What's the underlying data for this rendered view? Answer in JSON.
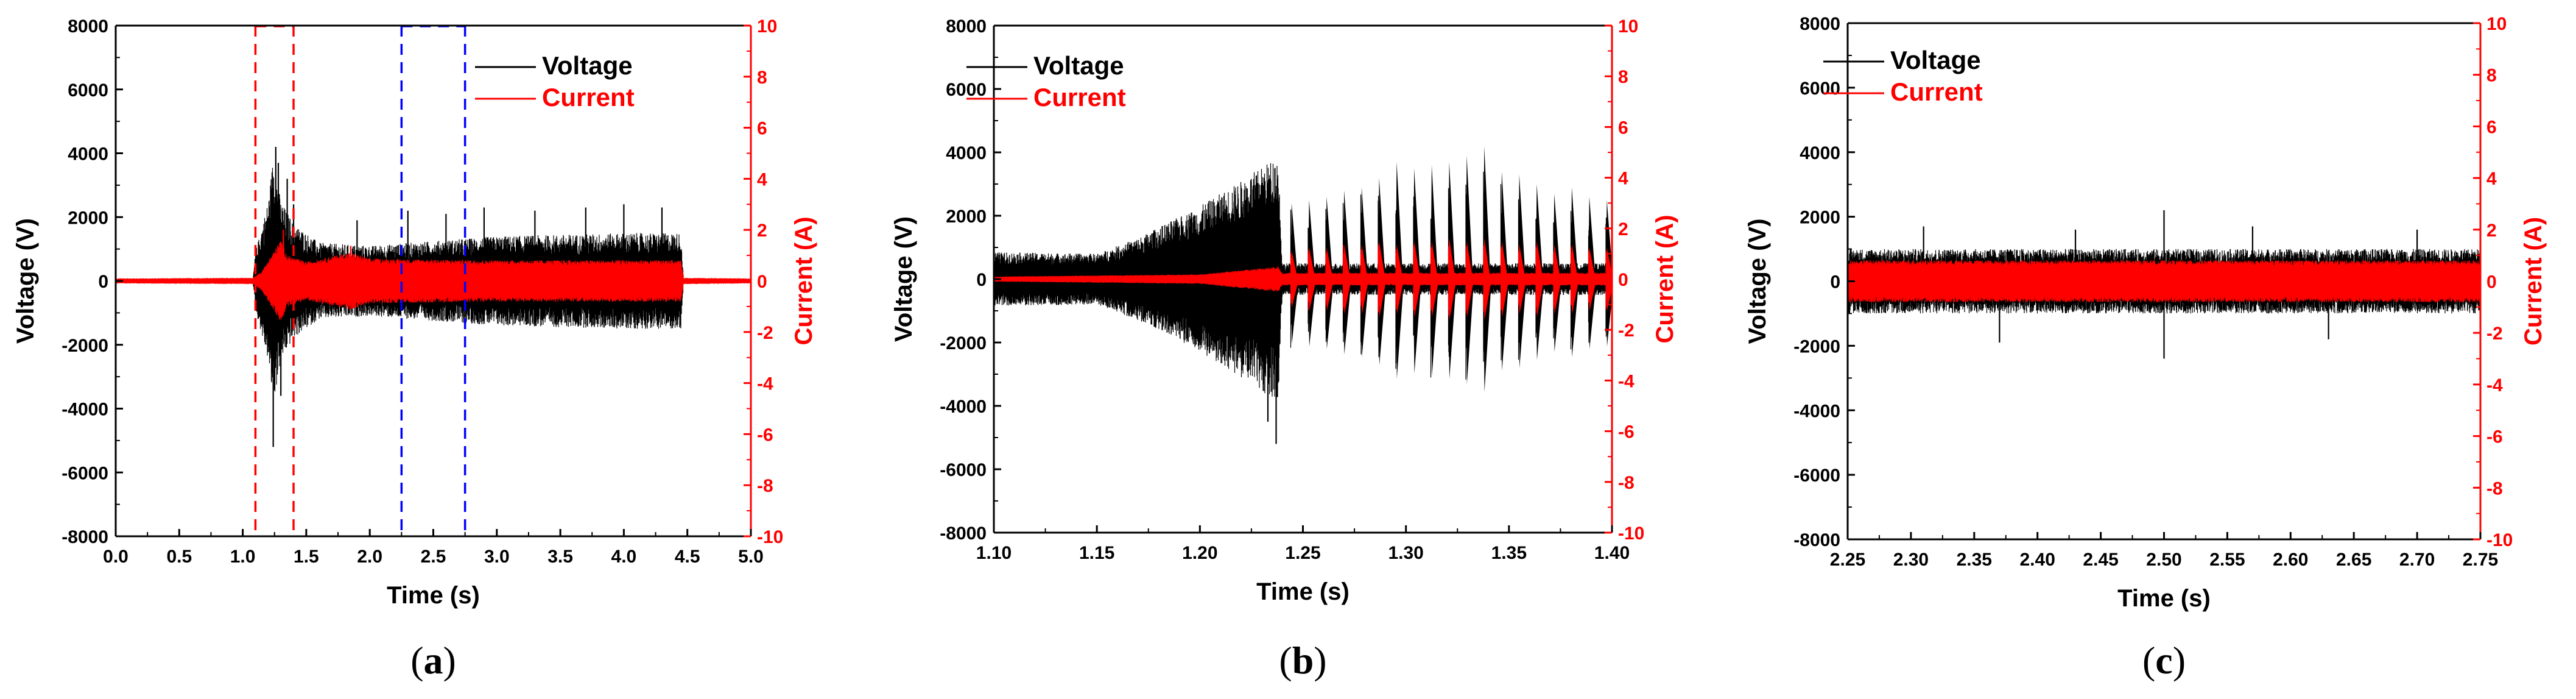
{
  "figure": {
    "panels": [
      {
        "label_open": "(",
        "label_letter": "a",
        "label_close": ")"
      },
      {
        "label_open": "(",
        "label_letter": "b",
        "label_close": ")"
      },
      {
        "label_open": "(",
        "label_letter": "c",
        "label_close": ")"
      }
    ]
  },
  "colors": {
    "voltage": "#000000",
    "current": "#ff0000",
    "window_red": "#ff0000",
    "window_blue": "#0000ff",
    "axis": "#000000",
    "right_axis": "#ff0000"
  },
  "chart_data": [
    {
      "type": "line",
      "panel": "a",
      "xlabel": "Time (s)",
      "ylabel_left": "Voltage (V)",
      "ylabel_right": "Current (A)",
      "xlim": [
        0.0,
        5.0
      ],
      "ylim_left": [
        -8000,
        8000
      ],
      "ylim_right": [
        -10,
        10
      ],
      "x_ticks": [
        "0.0",
        "0.5",
        "1.0",
        "1.5",
        "2.0",
        "2.5",
        "3.0",
        "3.5",
        "4.0",
        "4.5",
        "5.0"
      ],
      "y_left_ticks": [
        "8000",
        "6000",
        "4000",
        "2000",
        "0",
        "-2000",
        "-4000",
        "-6000",
        "-8000"
      ],
      "y_right_ticks": [
        "10",
        "8",
        "6",
        "4",
        "2",
        "0",
        "-2",
        "-4",
        "-6",
        "-8",
        "-10"
      ],
      "legend": [
        "Voltage",
        "Current"
      ],
      "highlight_windows": [
        {
          "x": [
            1.1,
            1.4
          ],
          "color": "red"
        },
        {
          "x": [
            2.25,
            2.75
          ],
          "color": "blue"
        }
      ],
      "series": [
        {
          "name": "Voltage",
          "axis": "left",
          "envelope": [
            [
              0.0,
              50
            ],
            [
              1.08,
              50
            ],
            [
              1.1,
              900
            ],
            [
              1.2,
              2500
            ],
            [
              1.24,
              3900
            ],
            [
              1.3,
              2500
            ],
            [
              1.4,
              1800
            ],
            [
              1.6,
              1200
            ],
            [
              2.0,
              1100
            ],
            [
              3.0,
              1400
            ],
            [
              4.0,
              1500
            ],
            [
              4.45,
              1500
            ],
            [
              4.47,
              50
            ],
            [
              5.0,
              50
            ]
          ],
          "spikes": [
            [
              1.24,
              -5200
            ],
            [
              1.26,
              4200
            ],
            [
              1.3,
              -3600
            ],
            [
              1.28,
              3700
            ],
            [
              1.35,
              3200
            ],
            [
              1.4,
              2400
            ],
            [
              1.9,
              1900
            ],
            [
              2.3,
              2200
            ],
            [
              2.6,
              2100
            ],
            [
              2.9,
              2300
            ],
            [
              3.3,
              2200
            ],
            [
              3.7,
              2300
            ],
            [
              4.0,
              2400
            ],
            [
              4.3,
              2300
            ]
          ]
        },
        {
          "name": "Current",
          "axis": "left",
          "envelope": [
            [
              0.0,
              80
            ],
            [
              1.08,
              100
            ],
            [
              1.15,
              300
            ],
            [
              1.3,
              1300
            ],
            [
              1.35,
              800
            ],
            [
              1.5,
              600
            ],
            [
              1.85,
              900
            ],
            [
              2.0,
              700
            ],
            [
              3.0,
              650
            ],
            [
              4.45,
              650
            ],
            [
              4.47,
              100
            ],
            [
              5.0,
              80
            ]
          ],
          "spikes": [
            [
              1.32,
              1600
            ],
            [
              1.85,
              1100
            ]
          ]
        }
      ]
    },
    {
      "type": "line",
      "panel": "b",
      "xlabel": "Time (s)",
      "ylabel_left": "Voltage (V)",
      "ylabel_right": "Current (A)",
      "xlim": [
        1.1,
        1.4
      ],
      "ylim_left": [
        -8000,
        8000
      ],
      "ylim_right": [
        -10,
        10
      ],
      "x_ticks": [
        "1.10",
        "1.15",
        "1.20",
        "1.25",
        "1.30",
        "1.35",
        "1.40"
      ],
      "y_left_ticks": [
        "8000",
        "6000",
        "4000",
        "2000",
        "0",
        "-2000",
        "-4000",
        "-6000",
        "-8000"
      ],
      "y_right_ticks": [
        "10",
        "8",
        "6",
        "4",
        "2",
        "0",
        "-2",
        "-4",
        "-6",
        "-8",
        "-10"
      ],
      "legend": [
        "Voltage",
        "Current"
      ],
      "series": [
        {
          "name": "Voltage",
          "axis": "left",
          "envelope": [
            [
              1.1,
              850
            ],
            [
              1.15,
              800
            ],
            [
              1.17,
              1300
            ],
            [
              1.2,
              2300
            ],
            [
              1.22,
              3100
            ],
            [
              1.238,
              3900
            ],
            [
              1.24,
              500
            ],
            [
              1.4,
              500
            ]
          ],
          "bursts": [
            1.244,
            1.2525,
            1.261,
            1.2695,
            1.278,
            1.2865,
            1.295,
            1.3035,
            1.312,
            1.3205,
            1.329,
            1.3375,
            1.346,
            1.3545,
            1.363,
            1.3715,
            1.38,
            1.3885,
            1.397
          ],
          "burst_peaks": [
            2400,
            2500,
            2600,
            2800,
            2900,
            3200,
            3700,
            3500,
            3600,
            3700,
            3900,
            4200,
            3400,
            3300,
            3000,
            2700,
            2900,
            2600,
            2500
          ],
          "spikes": [
            [
              1.237,
              -5200
            ],
            [
              1.233,
              -4500
            ]
          ]
        },
        {
          "name": "Current",
          "axis": "left",
          "envelope": [
            [
              1.1,
              80
            ],
            [
              1.2,
              150
            ],
            [
              1.238,
              400
            ],
            [
              1.24,
              200
            ],
            [
              1.4,
              200
            ]
          ],
          "bursts": [
            1.244,
            1.2525,
            1.261,
            1.2695,
            1.278,
            1.2865,
            1.295,
            1.3035,
            1.312,
            1.3205,
            1.329,
            1.3375,
            1.346,
            1.3545,
            1.363,
            1.3715,
            1.38,
            1.3885,
            1.397
          ],
          "burst_peaks": [
            900,
            1000,
            1000,
            1100,
            1100,
            1200,
            1100,
            1200,
            1200,
            1300,
            1200,
            1300,
            1200,
            1100,
            1200,
            1100,
            1100,
            1000,
            1000
          ]
        }
      ]
    },
    {
      "type": "line",
      "panel": "c",
      "xlabel": "Time (s)",
      "ylabel_left": "Voltage (V)",
      "ylabel_right": "Current (A)",
      "xlim": [
        2.25,
        2.75
      ],
      "ylim_left": [
        -8000,
        8000
      ],
      "ylim_right": [
        -10,
        10
      ],
      "x_ticks": [
        "2.25",
        "2.30",
        "2.35",
        "2.40",
        "2.45",
        "2.50",
        "2.55",
        "2.60",
        "2.65",
        "2.70",
        "2.75"
      ],
      "y_left_ticks": [
        "8000",
        "6000",
        "4000",
        "2000",
        "0",
        "-2000",
        "-4000",
        "-6000",
        "-8000"
      ],
      "y_right_ticks": [
        "10",
        "8",
        "6",
        "4",
        "2",
        "0",
        "-2",
        "-4",
        "-6",
        "-8",
        "-10"
      ],
      "legend": [
        "Voltage",
        "Current"
      ],
      "series": [
        {
          "name": "Voltage",
          "axis": "left",
          "envelope": [
            [
              2.25,
              1000
            ],
            [
              2.75,
              1000
            ]
          ],
          "spikes": [
            [
              2.31,
              1700
            ],
            [
              2.37,
              -1900
            ],
            [
              2.43,
              1600
            ],
            [
              2.5,
              2200
            ],
            [
              2.5,
              -2400
            ],
            [
              2.57,
              1700
            ],
            [
              2.63,
              -1800
            ],
            [
              2.7,
              1600
            ]
          ]
        },
        {
          "name": "Current",
          "axis": "left",
          "envelope": [
            [
              2.25,
              650
            ],
            [
              2.75,
              650
            ]
          ]
        }
      ]
    }
  ]
}
